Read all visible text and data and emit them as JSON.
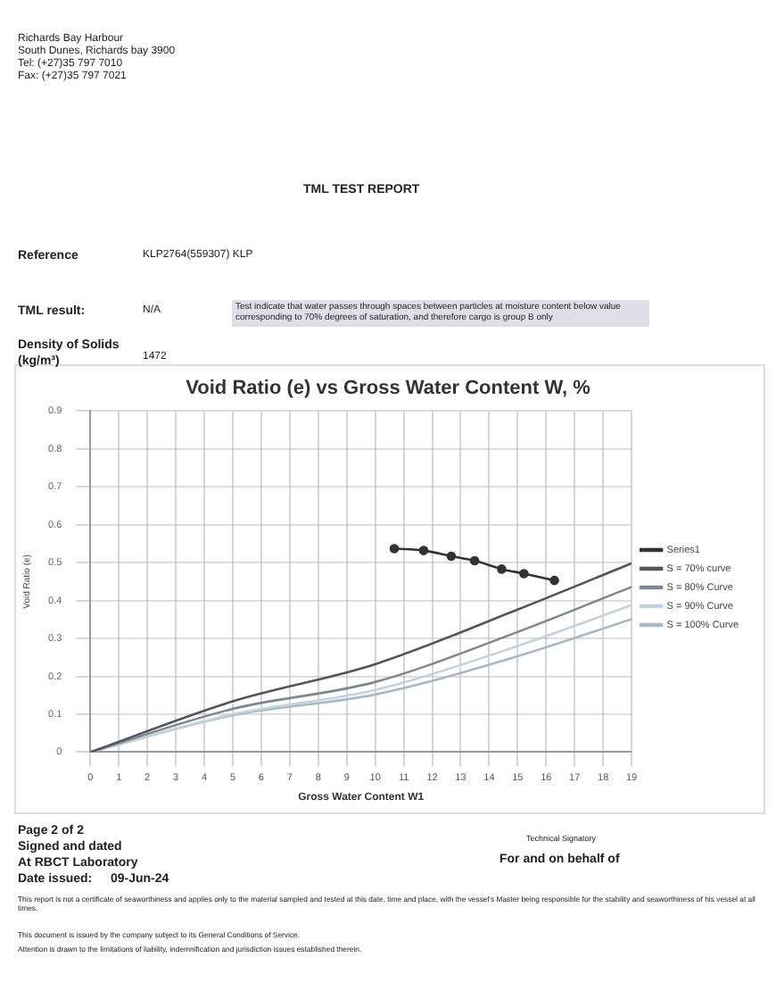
{
  "chart_data": {
    "type": "line",
    "title": "Void Ratio (e) vs Gross Water Content W, %",
    "xlabel": "Gross Water Content W1",
    "ylabel": "Void Ratio (e)",
    "xlim": [
      0,
      19
    ],
    "xticks": [
      0,
      1,
      2,
      3,
      4,
      5,
      6,
      7,
      8,
      9,
      10,
      11,
      12,
      13,
      14,
      15,
      16,
      17,
      18,
      19
    ],
    "ylim": [
      0,
      0.9
    ],
    "yticks": [
      0,
      0.1,
      0.2,
      0.3,
      0.4,
      0.5,
      0.6,
      0.7,
      0.8,
      0.9
    ],
    "grid": true,
    "legend": "right",
    "series": [
      {
        "name": "Series1",
        "color": "#333333",
        "marker": "circle",
        "x": [
          10.67,
          11.7,
          12.67,
          13.49,
          14.44,
          15.22,
          16.29
        ],
        "values": [
          0.537,
          0.532,
          0.517,
          0.505,
          0.483,
          0.471,
          0.453
        ]
      },
      {
        "name": "S = 70% curve",
        "color": "#50565c",
        "marker": "none",
        "x": [
          0,
          5,
          10,
          15,
          19
        ],
        "values": [
          0,
          0.134,
          0.232,
          0.376,
          0.498
        ]
      },
      {
        "name": "S = 80% Curve",
        "color": "#7f8890",
        "marker": "none",
        "x": [
          0,
          5,
          10,
          15,
          19
        ],
        "values": [
          0,
          0.114,
          0.185,
          0.317,
          0.436
        ]
      },
      {
        "name": "S = 90% Curve",
        "color": "#c3d2de",
        "marker": "none",
        "x": [
          0,
          5,
          10,
          15,
          19
        ],
        "values": [
          0,
          0.1,
          0.164,
          0.28,
          0.388
        ]
      },
      {
        "name": "S = 100% Curve",
        "color": "#a6b9c8",
        "marker": "none",
        "x": [
          0,
          5,
          10,
          15,
          19
        ],
        "values": [
          0,
          0.097,
          0.152,
          0.253,
          0.351
        ]
      }
    ],
    "annotations": [
      "Richards Bay  Harbour",
      "South Dunes, Richards bay 3900",
      "Tel: (+27)35 797 7010",
      "Fax: (+27)35 797 7021",
      "TML TEST REPORT",
      "Reference",
      "KLP2764(559307) KLP",
      "TML result:",
      "N/A",
      "Test indicate that water passes through spaces between particles at moisture content below value corresponding to 70% degrees of saturation, and therefore cargo is group B only",
      "Density of Solids (kg/m³)",
      "1472",
      "Page 2 of 2",
      "Signed and dated",
      "At RBCT Laboratory",
      "Date issued:",
      "09-Jun-24",
      "Technical Signatory",
      "For and on behalf of",
      "This report is not a certificate of seaworthiness and applies only to the material sampled and tested at this date, time and place, with the vessel's Master being responsible for the stability and seaworthiness of his vessel at all times.",
      "This document is issued by the company subject to its General Conditions of Service.",
      "Attention is drawn to the limitations of liability, indemnification and jurisdiction issues established therein."
    ]
  }
}
